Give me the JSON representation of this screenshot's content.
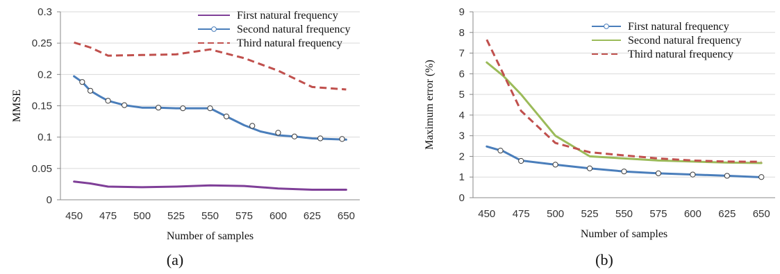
{
  "chart_data": [
    {
      "type": "line",
      "caption": "(a)",
      "xlabel": "Number of samples",
      "ylabel": "MMSE",
      "xlim": [
        440,
        660
      ],
      "ylim": [
        0,
        0.3
      ],
      "xticks": [
        450,
        475,
        500,
        525,
        550,
        575,
        600,
        625,
        650
      ],
      "xtick_labels": [
        "450",
        "475",
        "500",
        "525",
        "550",
        "575",
        "600",
        "625",
        "650"
      ],
      "yticks": [
        0,
        0.05,
        0.1,
        0.15,
        0.2,
        0.25,
        0.3
      ],
      "ytick_labels": [
        "0",
        "0.05",
        "0.1",
        "0.15",
        "0.2",
        "0.25",
        "0.3"
      ],
      "grid": "horizontal",
      "legend_position": "top-right",
      "series": [
        {
          "name": "First natural frequency",
          "color": "#7f3f98",
          "style": "solid",
          "marker": "none",
          "x": [
            450,
            462,
            475,
            500,
            525,
            550,
            575,
            600,
            625,
            650
          ],
          "y": [
            0.029,
            0.026,
            0.021,
            0.02,
            0.021,
            0.023,
            0.022,
            0.018,
            0.016,
            0.016
          ]
        },
        {
          "name": "Second natural frequency",
          "color": "#4a7ebb",
          "style": "solid",
          "marker": "circle",
          "x": [
            450,
            456,
            462,
            469,
            475,
            487,
            500,
            512,
            525,
            537,
            550,
            562,
            575,
            587,
            600,
            612,
            625,
            637,
            650
          ],
          "y": [
            0.197,
            0.188,
            0.174,
            0.165,
            0.158,
            0.151,
            0.147,
            0.147,
            0.146,
            0.146,
            0.146,
            0.133,
            0.119,
            0.109,
            0.103,
            0.101,
            0.098,
            0.097,
            0.096
          ],
          "markers_x": [
            456,
            462,
            475,
            487,
            512,
            530,
            550,
            562,
            581,
            600,
            612,
            631,
            647
          ],
          "markers_y": [
            0.188,
            0.174,
            0.158,
            0.151,
            0.147,
            0.146,
            0.146,
            0.133,
            0.118,
            0.107,
            0.101,
            0.098,
            0.097
          ]
        },
        {
          "name": "Third natural frequency",
          "color": "#c0504d",
          "style": "dashed",
          "marker": "none",
          "x": [
            450,
            462,
            475,
            500,
            525,
            550,
            575,
            600,
            625,
            650
          ],
          "y": [
            0.251,
            0.243,
            0.23,
            0.231,
            0.232,
            0.24,
            0.226,
            0.206,
            0.18,
            0.176
          ]
        }
      ]
    },
    {
      "type": "line",
      "caption": "(b)",
      "xlabel": "Number of samples",
      "ylabel": "Maximum error (%)",
      "xlim": [
        440,
        660
      ],
      "ylim": [
        0,
        9
      ],
      "xticks": [
        450,
        475,
        500,
        525,
        550,
        575,
        600,
        625,
        650
      ],
      "xtick_labels": [
        "450",
        "475",
        "500",
        "525",
        "550",
        "575",
        "600",
        "625",
        "650"
      ],
      "yticks": [
        0,
        1,
        2,
        3,
        4,
        5,
        6,
        7,
        8,
        9
      ],
      "ytick_labels": [
        "0",
        "1",
        "2",
        "3",
        "4",
        "5",
        "6",
        "7",
        "8",
        "9"
      ],
      "grid": "horizontal",
      "legend_position": "top-right",
      "series": [
        {
          "name": "First natural frequency",
          "color": "#4a7ebb",
          "style": "solid",
          "marker": "circle",
          "x": [
            450,
            462,
            475,
            500,
            525,
            550,
            575,
            600,
            625,
            650
          ],
          "y": [
            2.48,
            2.25,
            1.8,
            1.6,
            1.42,
            1.27,
            1.18,
            1.12,
            1.06,
            0.99
          ],
          "markers_x": [
            460,
            475,
            500,
            525,
            550,
            575,
            600,
            625,
            650
          ],
          "markers_y": [
            2.28,
            1.78,
            1.6,
            1.42,
            1.27,
            1.18,
            1.12,
            1.06,
            1.0
          ]
        },
        {
          "name": "Second natural frequency",
          "color": "#9bbb59",
          "style": "solid",
          "marker": "none",
          "x": [
            450,
            462,
            475,
            500,
            525,
            550,
            575,
            600,
            625,
            650
          ],
          "y": [
            6.55,
            5.9,
            5.0,
            3.0,
            2.0,
            1.9,
            1.8,
            1.75,
            1.7,
            1.68
          ]
        },
        {
          "name": "Third natural frequency",
          "color": "#c0504d",
          "style": "dashed",
          "marker": "none",
          "x": [
            450,
            462,
            475,
            500,
            525,
            550,
            575,
            600,
            625,
            650
          ],
          "y": [
            7.65,
            6.0,
            4.2,
            2.65,
            2.2,
            2.05,
            1.9,
            1.8,
            1.75,
            1.74
          ]
        }
      ]
    }
  ]
}
